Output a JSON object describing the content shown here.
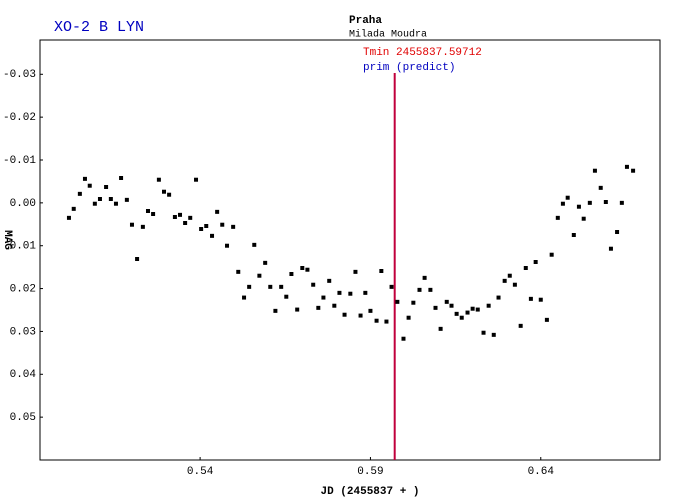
{
  "chart_data": {
    "type": "scatter",
    "title": "XO-2 B LYN",
    "observatory": "Praha",
    "observer": "Milada Moudra",
    "tmin_label": "Tmin 2455837.59712",
    "prediction_label": "prim (predict)",
    "tmin_x": 0.59712,
    "tmin_color": "#c0003c",
    "x_label": "JD (2455837 + )",
    "y_label": "MAG",
    "xlim": [
      0.493,
      0.675
    ],
    "xticks": [
      0.54,
      0.59,
      0.64
    ],
    "ylim": [
      0.06,
      -0.038
    ],
    "yticks": [
      -0.03,
      -0.02,
      -0.01,
      {
        "value": 0,
        "label": "0.00"
      },
      0.01,
      0.02,
      0.03,
      0.04,
      0.05
    ],
    "series": [
      {
        "color": "#000000",
        "x": [
          0.5015,
          0.5029,
          0.5047,
          0.5062,
          0.5076,
          0.5091,
          0.5106,
          0.5124,
          0.5138,
          0.5153,
          0.5168,
          0.5185,
          0.52,
          0.5215,
          0.5232,
          0.5247,
          0.5262,
          0.5279,
          0.5294,
          0.5309,
          0.5326,
          0.5341,
          0.5356,
          0.5371,
          0.5388,
          0.5403,
          0.5418,
          0.5435,
          0.545,
          0.5465,
          0.5479,
          0.5497,
          0.5512,
          0.5529,
          0.5544,
          0.5559,
          0.5574,
          0.5591,
          0.5606,
          0.5621,
          0.5638,
          0.5653,
          0.5668,
          0.5685,
          0.57,
          0.5715,
          0.5732,
          0.5747,
          0.5762,
          0.5779,
          0.5794,
          0.5809,
          0.5824,
          0.5841,
          0.5856,
          0.5871,
          0.5885,
          0.59,
          0.5918,
          0.5932,
          0.5947,
          0.5962,
          0.5979,
          0.5997,
          0.6012,
          0.6026,
          0.6044,
          0.6059,
          0.6076,
          0.6091,
          0.6106,
          0.6124,
          0.6138,
          0.6153,
          0.6168,
          0.6185,
          0.62,
          0.6215,
          0.6232,
          0.6247,
          0.6262,
          0.6276,
          0.6294,
          0.6309,
          0.6324,
          0.6341,
          0.6356,
          0.6371,
          0.6385,
          0.64,
          0.6418,
          0.6432,
          0.645,
          0.6465,
          0.6479,
          0.6497,
          0.6512,
          0.6526,
          0.6544,
          0.6559,
          0.6576,
          0.6591,
          0.6606,
          0.6624,
          0.6638,
          0.6653,
          0.6671
        ],
        "values": [
          0.0035,
          0.0014,
          -0.0021,
          -0.0056,
          -0.004,
          0.0002,
          -0.0009,
          -0.0037,
          -0.0009,
          0.0002,
          -0.0058,
          -0.0007,
          0.0051,
          0.0131,
          0.0056,
          0.0019,
          0.0026,
          -0.0054,
          -0.0026,
          -0.0019,
          0.0033,
          0.0028,
          0.0047,
          0.0035,
          -0.0054,
          0.0061,
          0.0054,
          0.0077,
          0.0021,
          0.0051,
          0.01,
          0.0056,
          0.0161,
          0.0221,
          0.0196,
          0.0098,
          0.017,
          0.014,
          0.0196,
          0.0252,
          0.0196,
          0.0219,
          0.0166,
          0.0249,
          0.0152,
          0.0156,
          0.0191,
          0.0245,
          0.0221,
          0.0182,
          0.024,
          0.021,
          0.0261,
          0.0212,
          0.0161,
          0.0263,
          0.021,
          0.0252,
          0.0275,
          0.0159,
          0.0277,
          0.0196,
          0.0231,
          0.0317,
          0.0268,
          0.0233,
          0.0203,
          0.0175,
          0.0203,
          0.0245,
          0.0294,
          0.0231,
          0.024,
          0.0259,
          0.0268,
          0.0256,
          0.0247,
          0.0249,
          0.0303,
          0.024,
          0.0308,
          0.0221,
          0.0182,
          0.017,
          0.0191,
          0.0287,
          0.0152,
          0.0224,
          0.0138,
          0.0226,
          0.0273,
          0.0121,
          0.0035,
          0.0002,
          -0.0012,
          0.0075,
          0.0009,
          0.0037,
          0,
          -0.0075,
          -0.0035,
          -0.0002,
          0.0107,
          0.0068,
          0,
          -0.0084,
          -0.0075
        ]
      }
    ]
  }
}
